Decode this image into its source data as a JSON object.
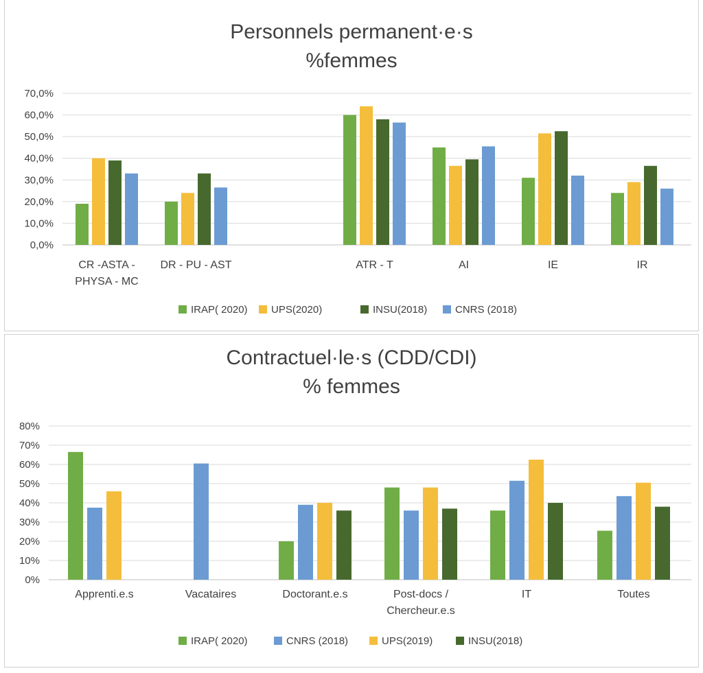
{
  "chart_data": [
    {
      "type": "bar",
      "title": [
        "Personnels permanent·e·s",
        "%femmes"
      ],
      "xlabel": "",
      "ylabel": "",
      "ylim": [
        0,
        70
      ],
      "y_ticks": [
        "0,0%",
        "10,0%",
        "20,0%",
        "30,0%",
        "40,0%",
        "50,0%",
        "60,0%",
        "70,0%"
      ],
      "grid": true,
      "legend_position": "bottom",
      "categories": [
        [
          "CR -ASTA -",
          "PHYSA - MC"
        ],
        [
          "DR - PU - AST"
        ],
        [
          ""
        ],
        [
          "ATR - T"
        ],
        [
          "AI"
        ],
        [
          "IE"
        ],
        [
          "IR"
        ]
      ],
      "series": [
        {
          "name": "IRAP( 2020)",
          "color": "#70ad47",
          "values": [
            19,
            20,
            null,
            60,
            45,
            31,
            24
          ]
        },
        {
          "name": "UPS(2020)",
          "color": "#f4bd3b",
          "values": [
            40,
            24,
            null,
            64,
            36.5,
            51.5,
            29
          ]
        },
        {
          "name": "INSU(2018)",
          "color": "#47692e",
          "values": [
            39,
            33,
            null,
            58,
            39.5,
            52.5,
            36.5
          ]
        },
        {
          "name": "CNRS (2018)",
          "color": "#6b9bd2",
          "values": [
            33,
            26.5,
            null,
            56.5,
            45.5,
            32,
            26
          ]
        }
      ]
    },
    {
      "type": "bar",
      "title": [
        "Contractuel·le·s (CDD/CDI)",
        "% femmes"
      ],
      "xlabel": "",
      "ylabel": "",
      "ylim": [
        0,
        80
      ],
      "y_ticks": [
        "0%",
        "10%",
        "20%",
        "30%",
        "40%",
        "50%",
        "60%",
        "70%",
        "80%"
      ],
      "grid": true,
      "legend_position": "bottom",
      "categories": [
        [
          "Apprenti.e.s"
        ],
        [
          "Vacataires"
        ],
        [
          "Doctorant.e.s"
        ],
        [
          "Post-docs /",
          "Chercheur.e.s"
        ],
        [
          "IT"
        ],
        [
          "Toutes"
        ]
      ],
      "series": [
        {
          "name": "IRAP( 2020)",
          "color": "#70ad47",
          "values": [
            66.5,
            null,
            20,
            48,
            36,
            25.5
          ]
        },
        {
          "name": "CNRS (2018)",
          "color": "#6b9bd2",
          "values": [
            37.5,
            60.5,
            39,
            36,
            51.5,
            43.5
          ]
        },
        {
          "name": "UPS(2019)",
          "color": "#f4bd3b",
          "values": [
            46,
            null,
            40,
            48,
            62.5,
            50.5
          ]
        },
        {
          "name": "INSU(2018)",
          "color": "#47692e",
          "values": [
            null,
            null,
            36,
            37,
            40,
            38
          ]
        }
      ]
    }
  ]
}
